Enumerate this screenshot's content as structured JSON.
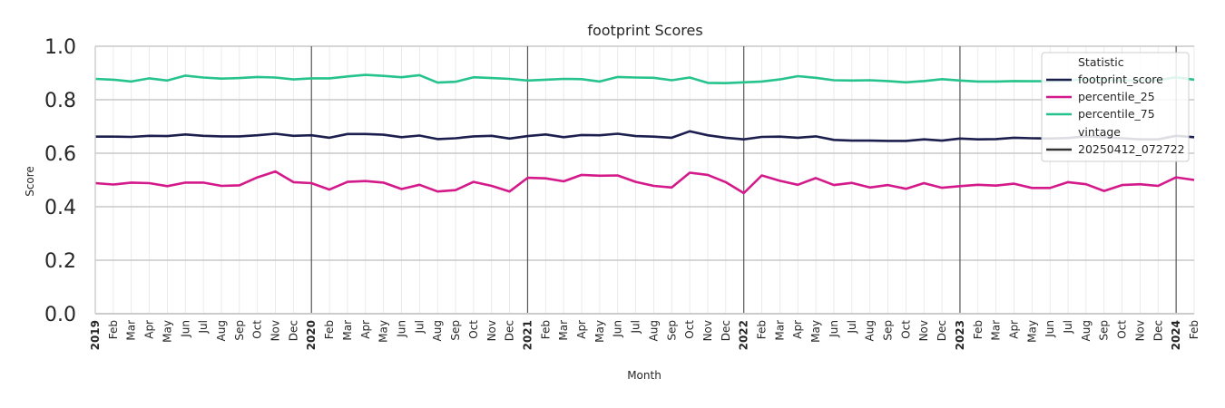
{
  "chart_data": {
    "type": "line",
    "title": "footprint Scores",
    "xlabel": "Month",
    "ylabel": "Score",
    "ylim": [
      0,
      1
    ],
    "yticks": [
      "0.0",
      "0.2",
      "0.4",
      "0.6",
      "0.8",
      "1.0"
    ],
    "grid": true,
    "legend_position": "top-right",
    "x": [
      "2019",
      "Feb",
      "Mar",
      "Apr",
      "May",
      "Jun",
      "Jul",
      "Aug",
      "Sep",
      "Oct",
      "Nov",
      "Dec",
      "2020",
      "Feb",
      "Mar",
      "Apr",
      "May",
      "Jun",
      "Jul",
      "Aug",
      "Sep",
      "Oct",
      "Nov",
      "Dec",
      "2021",
      "Feb",
      "Mar",
      "Apr",
      "May",
      "Jun",
      "Jul",
      "Aug",
      "Sep",
      "Oct",
      "Nov",
      "Dec",
      "2022",
      "Feb",
      "Mar",
      "Apr",
      "May",
      "Jun",
      "Jul",
      "Aug",
      "Sep",
      "Oct",
      "Nov",
      "Dec",
      "2023",
      "Feb",
      "Mar",
      "Apr",
      "May",
      "Jun",
      "Jul",
      "Aug",
      "Sep",
      "Oct",
      "Nov",
      "Dec",
      "2024",
      "Feb"
    ],
    "year_markers": [
      "2019",
      "2020",
      "2021",
      "2022",
      "2023",
      "2024"
    ],
    "legend": {
      "title": "Statistic",
      "entries": [
        "footprint_score",
        "percentile_25",
        "percentile_75"
      ],
      "subtitle": "vintage",
      "vintage_entries": [
        "20250412_072722"
      ]
    },
    "series": [
      {
        "name": "footprint_score",
        "color": "#1c1f4e",
        "values": [
          0.662,
          0.662,
          0.661,
          0.665,
          0.664,
          0.67,
          0.665,
          0.663,
          0.663,
          0.667,
          0.673,
          0.665,
          0.667,
          0.658,
          0.672,
          0.672,
          0.669,
          0.66,
          0.666,
          0.653,
          0.656,
          0.663,
          0.665,
          0.655,
          0.664,
          0.67,
          0.66,
          0.668,
          0.667,
          0.673,
          0.664,
          0.662,
          0.658,
          0.682,
          0.667,
          0.658,
          0.652,
          0.661,
          0.662,
          0.658,
          0.663,
          0.65,
          0.647,
          0.647,
          0.646,
          0.646,
          0.652,
          0.647,
          0.655,
          0.652,
          0.653,
          0.658,
          0.656,
          0.655,
          0.657,
          0.663,
          0.66,
          0.656,
          0.652,
          0.652,
          0.665,
          0.66
        ]
      },
      {
        "name": "percentile_25",
        "color": "#d4198a",
        "values": [
          0.488,
          0.483,
          0.49,
          0.488,
          0.477,
          0.49,
          0.49,
          0.478,
          0.48,
          0.51,
          0.532,
          0.492,
          0.488,
          0.464,
          0.493,
          0.496,
          0.49,
          0.466,
          0.482,
          0.457,
          0.462,
          0.493,
          0.478,
          0.457,
          0.508,
          0.506,
          0.495,
          0.519,
          0.516,
          0.517,
          0.493,
          0.478,
          0.472,
          0.527,
          0.519,
          0.492,
          0.451,
          0.517,
          0.497,
          0.482,
          0.507,
          0.481,
          0.489,
          0.472,
          0.481,
          0.467,
          0.488,
          0.471,
          0.477,
          0.482,
          0.479,
          0.486,
          0.47,
          0.47,
          0.492,
          0.484,
          0.459,
          0.481,
          0.484,
          0.478,
          0.51,
          0.5
        ]
      },
      {
        "name": "percentile_75",
        "color": "#26c48c",
        "values": [
          0.878,
          0.875,
          0.868,
          0.88,
          0.872,
          0.89,
          0.883,
          0.879,
          0.881,
          0.885,
          0.883,
          0.876,
          0.88,
          0.88,
          0.887,
          0.893,
          0.889,
          0.884,
          0.892,
          0.864,
          0.867,
          0.884,
          0.881,
          0.878,
          0.872,
          0.875,
          0.878,
          0.877,
          0.868,
          0.885,
          0.883,
          0.882,
          0.873,
          0.883,
          0.863,
          0.862,
          0.865,
          0.868,
          0.876,
          0.888,
          0.882,
          0.873,
          0.872,
          0.873,
          0.87,
          0.865,
          0.87,
          0.877,
          0.872,
          0.868,
          0.868,
          0.87,
          0.869,
          0.869,
          0.872,
          0.877,
          0.874,
          0.872,
          0.873,
          0.873,
          0.884,
          0.875
        ]
      }
    ]
  }
}
